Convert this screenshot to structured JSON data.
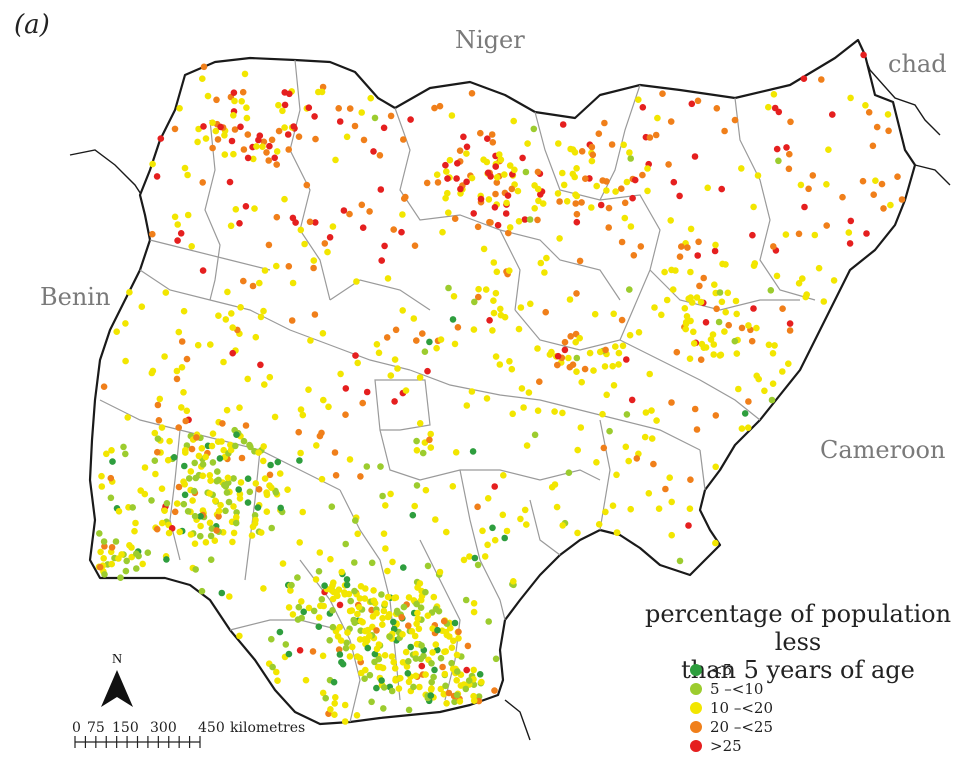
{
  "panel_label": "(a)",
  "countries": {
    "niger": "Niger",
    "chad": "chad",
    "benin": "Benin",
    "cameroon": "Cameroon"
  },
  "north_label": "N",
  "scale": {
    "ticks": [
      "0",
      "75",
      "150",
      "300",
      "450"
    ],
    "unit": "kilometres"
  },
  "legend": {
    "title_line1": "percentage of population less",
    "title_line2": "than 5 years of age",
    "items": [
      {
        "label": "<5",
        "color": "#2e9e3e"
      },
      {
        "label": "5 –<10",
        "color": "#9ccc2e"
      },
      {
        "label": "10 –<20",
        "color": "#f2e600"
      },
      {
        "label": "20 –<25",
        "color": "#f07f1a"
      },
      {
        "label": ">25",
        "color": "#e51f1f"
      }
    ]
  },
  "colors": {
    "country_outline": "#1a1a1a",
    "state_border": "#9a9a9a",
    "neighbor_label": "#7a7a7a"
  }
}
